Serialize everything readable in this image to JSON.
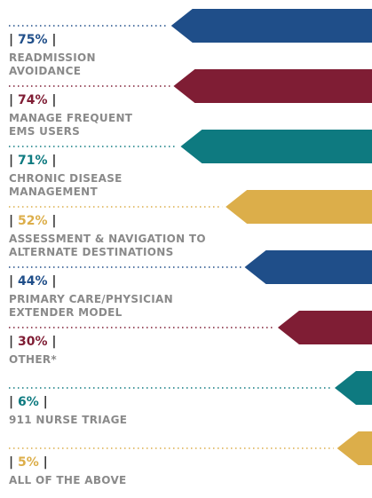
{
  "chart_data": {
    "type": "arrow-bar",
    "categories": [
      "READMISSION\nAVOIDANCE",
      "MANAGE FREQUENT\nEMS USERS",
      "CHRONIC DISEASE\nMANAGEMENT",
      "ASSESSMENT & NAVIGATION TO\nALTERNATE DESTINATIONS",
      "PRIMARY CARE/PHYSICIAN\nEXTENDER MODEL",
      "OTHER*",
      "911 NURSE TRIAGE",
      "ALL OF THE ABOVE"
    ],
    "values": [
      75,
      74,
      71,
      52,
      44,
      30,
      6,
      5
    ],
    "value_labels": [
      "75%",
      "74%",
      "71%",
      "52%",
      "44%",
      "30%",
      "6%",
      "5%"
    ],
    "colors": [
      "#1f4e89",
      "#7f1d34",
      "#0e7a80",
      "#dcae4a",
      "#1f4e89",
      "#7f1d34",
      "#0e7a80",
      "#dcae4a"
    ]
  }
}
